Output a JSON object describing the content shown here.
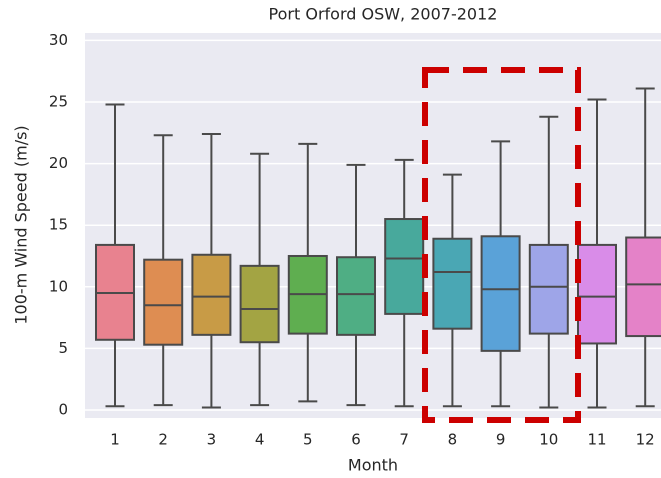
{
  "chart_data": {
    "type": "box",
    "title": "Port Orford OSW, 2007-2012",
    "xlabel": "Month",
    "ylabel": "100-m Wind Speed (m/s)",
    "categories": [
      "1",
      "2",
      "3",
      "4",
      "5",
      "6",
      "7",
      "8",
      "9",
      "10",
      "11",
      "12"
    ],
    "whisker_low": [
      0.3,
      0.4,
      0.2,
      0.4,
      0.7,
      0.4,
      0.3,
      0.3,
      0.3,
      0.2,
      0.2,
      0.3
    ],
    "q1": [
      5.7,
      5.3,
      6.1,
      5.5,
      6.2,
      6.1,
      7.8,
      6.6,
      4.8,
      6.2,
      5.4,
      6.0
    ],
    "median": [
      9.5,
      8.5,
      9.2,
      8.2,
      9.4,
      9.4,
      12.3,
      11.2,
      9.8,
      10.0,
      9.2,
      10.2
    ],
    "q3": [
      13.4,
      12.2,
      12.6,
      11.7,
      12.5,
      12.4,
      15.5,
      13.9,
      14.1,
      13.4,
      13.4,
      14.0
    ],
    "whisker_high": [
      24.8,
      22.3,
      22.4,
      20.8,
      21.6,
      19.9,
      20.3,
      19.1,
      21.8,
      23.8,
      25.2,
      26.1
    ],
    "colors": [
      "#e8828f",
      "#de8d52",
      "#c89b46",
      "#a3a443",
      "#5fae50",
      "#4fae84",
      "#48a99c",
      "#4aa7b4",
      "#5aa2d8",
      "#9ea5e8",
      "#d98ce8",
      "#e482c8"
    ],
    "ylim": [
      -0.65,
      30.6
    ],
    "yticks": [
      0,
      5,
      10,
      15,
      20,
      25,
      30
    ],
    "grid": true
  }
}
